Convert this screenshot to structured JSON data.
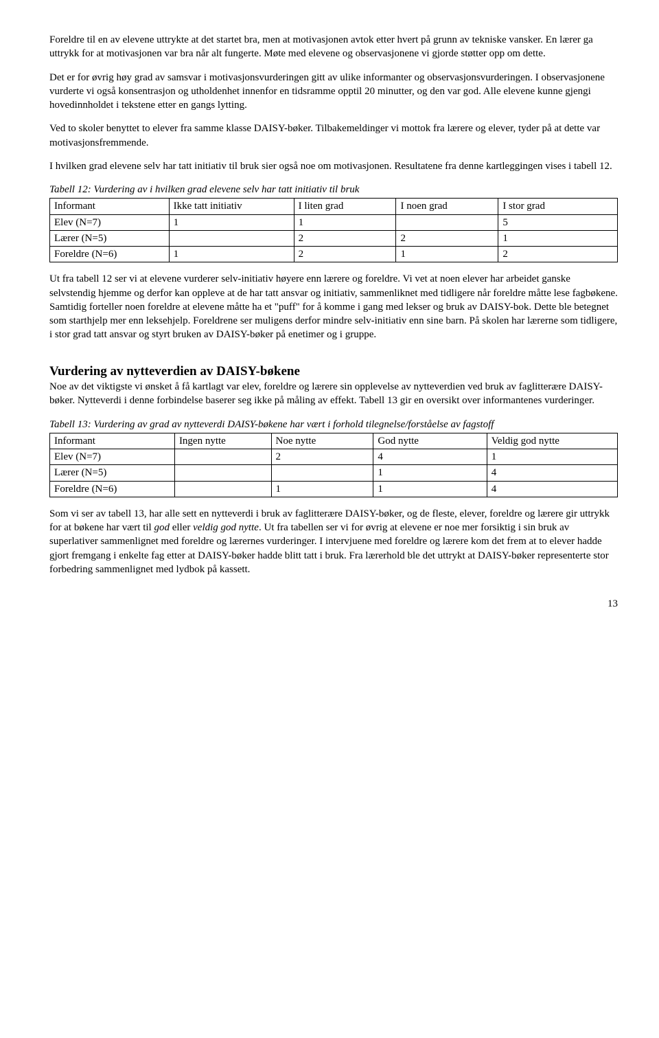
{
  "para1": "Foreldre til en av elevene uttrykte at det startet bra, men at motivasjonen avtok etter hvert på grunn av tekniske vansker. En lærer ga uttrykk for at motivasjonen var bra når alt fungerte. Møte med elevene og observasjonene vi gjorde støtter opp om dette.",
  "para2": "Det er for øvrig høy grad av samsvar i motivasjonsvurderingen gitt av ulike informanter og observasjonsvurderingen. I observasjonene vurderte vi også konsentrasjon og utholdenhet innenfor en tidsramme opptil 20 minutter, og den var god. Alle elevene kunne gjengi hovedinnholdet i tekstene etter en gangs lytting.",
  "para3": "Ved to skoler benyttet to elever fra samme klasse DAISY-bøker. Tilbakemeldinger vi mottok fra lærere og elever, tyder på at dette var motivasjonsfremmende.",
  "para4": "I hvilken grad elevene selv har tatt initiativ til bruk sier også noe om motivasjonen. Resultatene fra denne kartleggingen vises i tabell 12.",
  "table12": {
    "caption": "Tabell 12: Vurdering av i hvilken grad elevene selv har tatt initiativ til bruk",
    "columns": [
      "Informant",
      "Ikke tatt initiativ",
      "I liten grad",
      "I noen grad",
      "I stor grad"
    ],
    "rows": [
      [
        "Elev (N=7)",
        "1",
        "1",
        "",
        "5"
      ],
      [
        "Lærer (N=5)",
        "",
        "2",
        "2",
        "1"
      ],
      [
        "Foreldre (N=6)",
        "1",
        "2",
        "1",
        "2"
      ]
    ],
    "col_widths": [
      "21%",
      "22%",
      "18%",
      "18%",
      "21%"
    ]
  },
  "para5": "Ut fra tabell 12 ser vi at elevene vurderer selv-initiativ høyere enn lærere og foreldre. Vi vet at noen elever har arbeidet ganske selvstendig hjemme og derfor kan oppleve at de har tatt ansvar og initiativ, sammenliknet med tidligere når foreldre måtte lese fagbøkene. Samtidig forteller noen foreldre at elevene måtte ha et \"puff\" for å komme i gang med lekser og bruk av DAISY-bok. Dette ble betegnet som starthjelp mer enn leksehjelp. Foreldrene ser muligens derfor mindre selv-initiativ enn sine barn. På skolen har lærerne som tidligere, i stor grad tatt ansvar og styrt bruken av DAISY-bøker på enetimer og i gruppe.",
  "section_title": "Vurdering av nytteverdien av DAISY-bøkene",
  "para6": "Noe av det viktigste vi ønsket å få kartlagt var elev, foreldre og lærere sin opplevelse av nytteverdien ved bruk av faglitterære DAISY-bøker. Nytteverdi i denne forbindelse baserer seg ikke på måling av effekt. Tabell 13 gir en oversikt over informantenes vurderinger.",
  "table13": {
    "caption": "Tabell 13: Vurdering av grad av nytteverdi DAISY-bøkene har vært i forhold tilegnelse/forståelse av fagstoff",
    "columns": [
      "Informant",
      "Ingen nytte",
      "Noe nytte",
      "God nytte",
      "Veldig god nytte"
    ],
    "rows": [
      [
        "Elev  (N=7)",
        "",
        "2",
        "4",
        "1"
      ],
      [
        "Lærer (N=5)",
        "",
        "",
        "1",
        "4"
      ],
      [
        "Foreldre (N=6)",
        "",
        "1",
        "1",
        "4"
      ]
    ],
    "col_widths": [
      "22%",
      "17%",
      "18%",
      "20%",
      "23%"
    ]
  },
  "para7_parts": {
    "a": "Som vi ser av tabell 13, har alle sett en nytteverdi i bruk av faglitterære DAISY-bøker, og de fleste, elever, foreldre og lærere gir uttrykk for at bøkene har vært til ",
    "b": "god",
    "c": " eller ",
    "d": "veldig god nytte",
    "e": ". Ut fra tabellen ser vi for øvrig at elevene er noe mer forsiktig i sin bruk av superlativer sammenlignet med foreldre og lærernes vurderinger. I intervjuene med foreldre og lærere kom det frem at to elever hadde gjort fremgang i enkelte fag etter at DAISY-bøker hadde blitt tatt i bruk. Fra lærerhold ble det uttrykt at DAISY-bøker representerte stor forbedring sammenlignet med lydbok på kassett."
  },
  "page_number": "13"
}
